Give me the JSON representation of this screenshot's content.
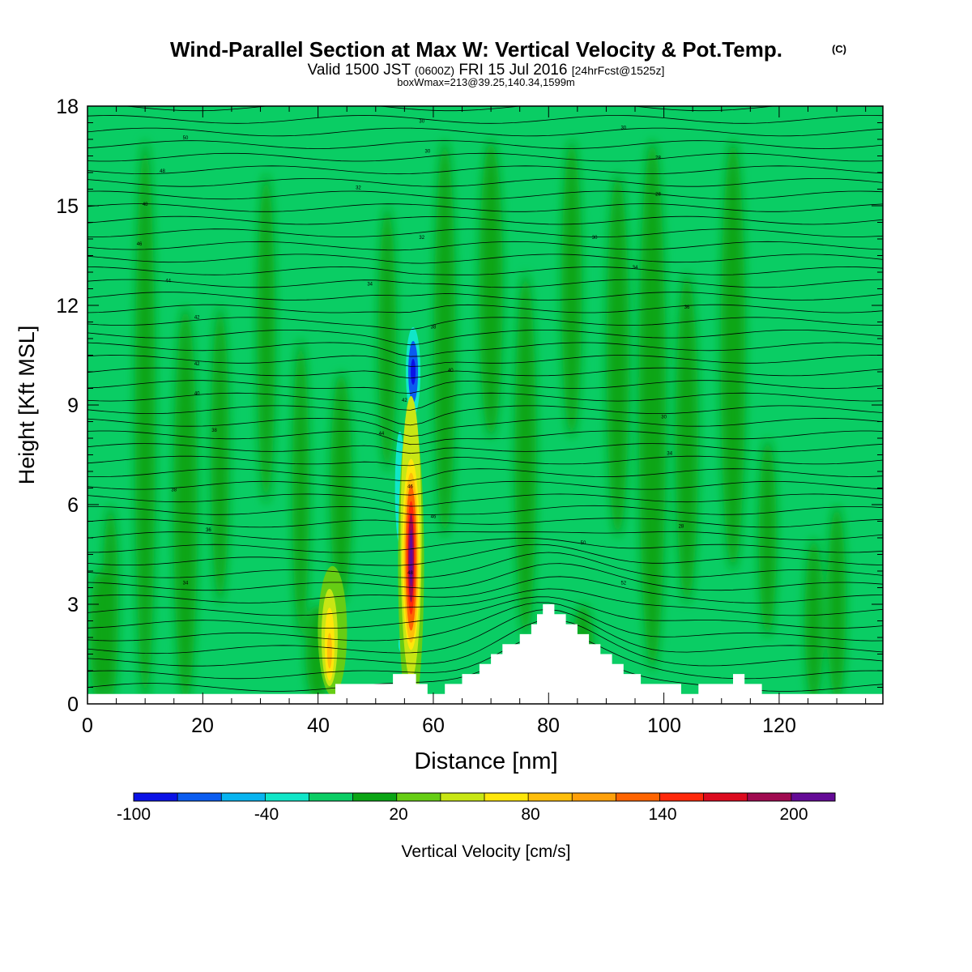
{
  "header": {
    "title": "Wind-Parallel Section at Max W: Vertical Velocity & Pot.Temp.",
    "copyright": "(C)",
    "valid_prefix": "Valid 1500 JST",
    "zulu": "(0600Z)",
    "valid_date": "FRI 15 Jul 2016",
    "forecast": "[24hrFcst@1525z]",
    "box_info": "boxWmax=213@39.25,140.34,1599m"
  },
  "chart_data": {
    "type": "heatmap",
    "xlabel": "Distance [nm]",
    "ylabel": "Height [Kft MSL]",
    "xlim": [
      0,
      138
    ],
    "ylim": [
      0,
      18
    ],
    "x_ticks": [
      "0",
      "20",
      "40",
      "60",
      "80",
      "100",
      "120"
    ],
    "y_ticks": [
      "0",
      "3",
      "6",
      "9",
      "12",
      "15",
      "18"
    ],
    "colorbar": {
      "label": "Vertical Velocity [cm/s]",
      "tick_labels": [
        "-100",
        "-40",
        "20",
        "80",
        "140",
        "200"
      ],
      "tick_values": [
        -100,
        -40,
        20,
        80,
        140,
        200
      ],
      "levels": [
        -100,
        -80,
        -60,
        -40,
        -20,
        0,
        20,
        40,
        60,
        80,
        100,
        120,
        140,
        160,
        180,
        200,
        220
      ],
      "colors": [
        "#0a12e6",
        "#0a5cf0",
        "#08b4f0",
        "#10e6c8",
        "#0acd64",
        "#0aa514",
        "#66cd14",
        "#c8e614",
        "#ffe60a",
        "#ffbe0a",
        "#ffa00a",
        "#ff6400",
        "#ff280a",
        "#dc0a1e",
        "#a00a50",
        "#640a96"
      ]
    },
    "background_color": "#0acd64",
    "updraft_max": {
      "x": 56,
      "z": 4.5,
      "value": 213
    },
    "downdraft_min": {
      "x": 56.5,
      "z": 10,
      "value": -90
    },
    "terrain": [
      [
        0,
        0.3
      ],
      [
        43,
        0.3
      ],
      [
        43,
        0.6
      ],
      [
        53,
        0.6
      ],
      [
        53,
        0.9
      ],
      [
        57,
        0.9
      ],
      [
        57,
        0.6
      ],
      [
        59,
        0.6
      ],
      [
        59,
        0.3
      ],
      [
        62,
        0.3
      ],
      [
        62,
        0.6
      ],
      [
        65,
        0.6
      ],
      [
        65,
        0.9
      ],
      [
        68,
        0.9
      ],
      [
        68,
        1.2
      ],
      [
        70,
        1.2
      ],
      [
        70,
        1.5
      ],
      [
        72,
        1.5
      ],
      [
        72,
        1.8
      ],
      [
        75,
        1.8
      ],
      [
        75,
        2.1
      ],
      [
        77,
        2.1
      ],
      [
        77,
        2.4
      ],
      [
        78,
        2.4
      ],
      [
        78,
        2.7
      ],
      [
        79,
        2.7
      ],
      [
        79,
        3.0
      ],
      [
        81,
        3.0
      ],
      [
        81,
        2.7
      ],
      [
        83,
        2.7
      ],
      [
        83,
        2.4
      ],
      [
        85,
        2.4
      ],
      [
        85,
        2.1
      ],
      [
        87,
        2.1
      ],
      [
        87,
        1.8
      ],
      [
        89,
        1.8
      ],
      [
        89,
        1.5
      ],
      [
        91,
        1.5
      ],
      [
        91,
        1.2
      ],
      [
        93,
        1.2
      ],
      [
        93,
        0.9
      ],
      [
        96,
        0.9
      ],
      [
        96,
        0.6
      ],
      [
        103,
        0.6
      ],
      [
        103,
        0.3
      ],
      [
        106,
        0.3
      ],
      [
        106,
        0.6
      ],
      [
        112,
        0.6
      ],
      [
        112,
        0.9
      ],
      [
        114,
        0.9
      ],
      [
        114,
        0.6
      ],
      [
        117,
        0.6
      ],
      [
        117,
        0.3
      ],
      [
        138,
        0.3
      ]
    ],
    "theta_label_values": [
      "50",
      "48",
      "48",
      "46",
      "44",
      "42",
      "42",
      "40",
      "38",
      "38",
      "36",
      "34",
      "34",
      "32",
      "32",
      "30",
      "30",
      "30",
      "28",
      "28",
      "30",
      "34",
      "36",
      "38",
      "40",
      "42",
      "44",
      "46",
      "46",
      "48",
      "50",
      "52",
      "34",
      "30",
      "28"
    ]
  }
}
